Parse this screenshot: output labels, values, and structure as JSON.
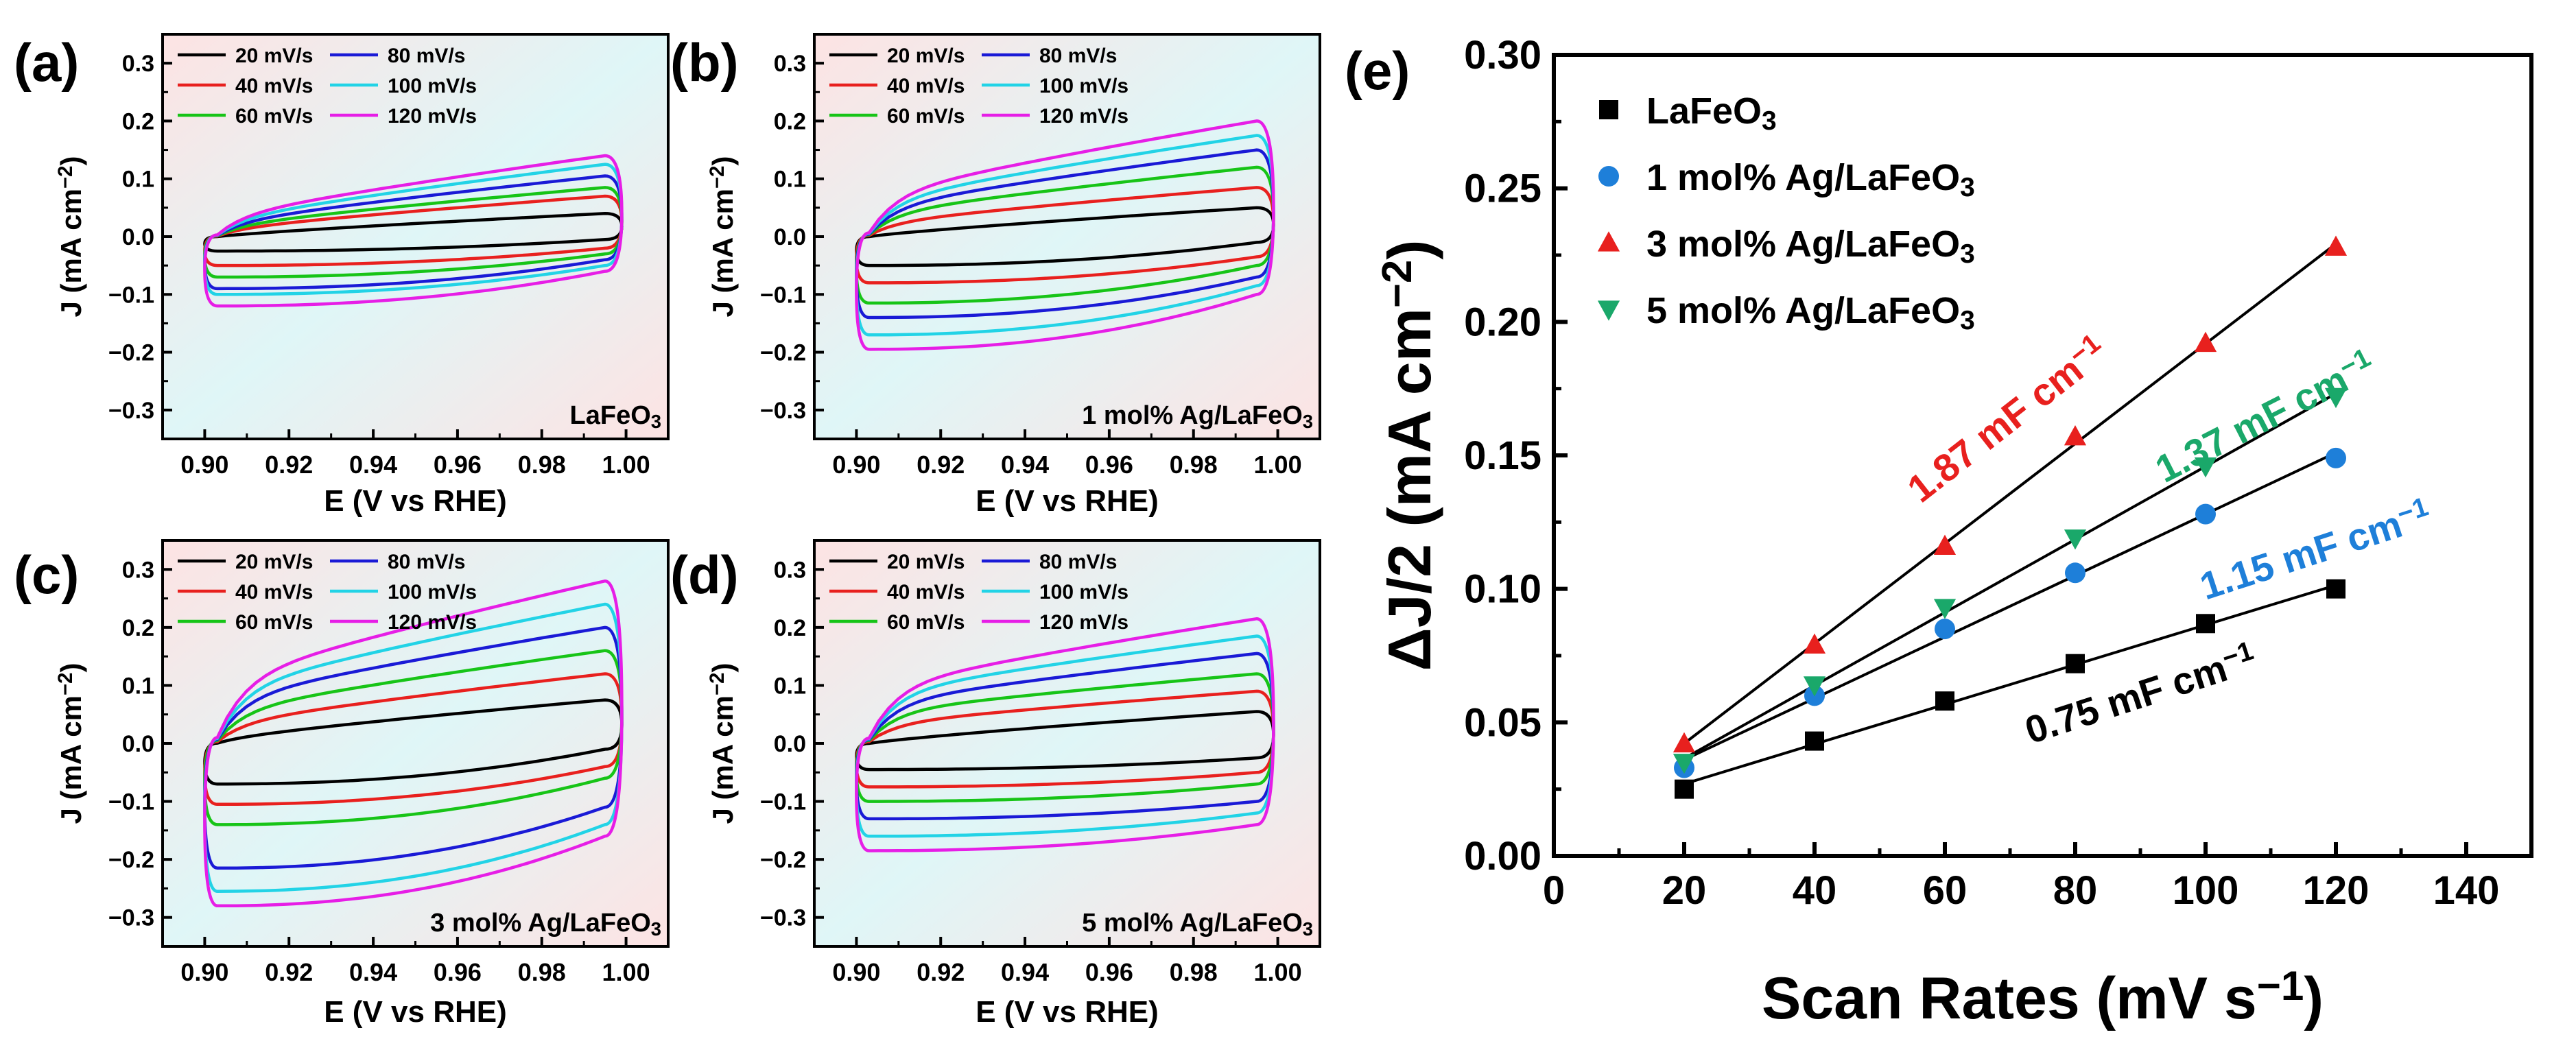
{
  "chart_data": [
    {
      "type": "line",
      "panel_label": "(a)",
      "sample_label": "LaFeO3",
      "xlabel": "E (V vs RHE)",
      "ylabel": "J (mA cm−2)",
      "xlim": [
        0.89,
        1.01
      ],
      "ylim": [
        -0.35,
        0.35
      ],
      "xticks": [
        "0.90",
        "0.92",
        "0.94",
        "0.96",
        "0.98",
        "1.00"
      ],
      "yticks": [
        "−0.3",
        "−0.2",
        "−0.1",
        "0.0",
        "0.1",
        "0.2",
        "0.3"
      ],
      "legend": [
        "20 mV/s",
        "40 mV/s",
        "60 mV/s",
        "80 mV/s",
        "100 mV/s",
        "120 mV/s"
      ],
      "series": [
        {
          "name": "20 mV/s",
          "color": "#000000",
          "upper": [
            0.0,
            0.04
          ],
          "lower": [
            -0.025,
            -0.005
          ]
        },
        {
          "name": "40 mV/s",
          "color": "#e8201e",
          "upper": [
            0.01,
            0.07
          ],
          "lower": [
            -0.05,
            -0.02
          ]
        },
        {
          "name": "60 mV/s",
          "color": "#17c417",
          "upper": [
            0.015,
            0.085
          ],
          "lower": [
            -0.07,
            -0.03
          ]
        },
        {
          "name": "80 mV/s",
          "color": "#1a1ad6",
          "upper": [
            0.02,
            0.105
          ],
          "lower": [
            -0.09,
            -0.04
          ]
        },
        {
          "name": "100 mV/s",
          "color": "#22d3e6",
          "upper": [
            0.025,
            0.125
          ],
          "lower": [
            -0.1,
            -0.05
          ]
        },
        {
          "name": "120 mV/s",
          "color": "#e61ee6",
          "upper": [
            0.03,
            0.14
          ],
          "lower": [
            -0.12,
            -0.06
          ]
        }
      ]
    },
    {
      "type": "line",
      "panel_label": "(b)",
      "sample_label": "1 mol% Ag/LaFeO3",
      "xlabel": "E (V vs RHE)",
      "ylabel": "J (mA cm−2)",
      "xlim": [
        0.89,
        1.01
      ],
      "ylim": [
        -0.35,
        0.35
      ],
      "xticks": [
        "0.90",
        "0.92",
        "0.94",
        "0.96",
        "0.98",
        "1.00"
      ],
      "yticks": [
        "−0.3",
        "−0.2",
        "−0.1",
        "0.0",
        "0.1",
        "0.2",
        "0.3"
      ],
      "legend": [
        "20 mV/s",
        "40 mV/s",
        "60 mV/s",
        "80 mV/s",
        "100 mV/s",
        "120 mV/s"
      ],
      "series": [
        {
          "name": "20 mV/s",
          "color": "#000000",
          "upper": [
            0.0,
            0.05
          ],
          "lower": [
            -0.05,
            -0.01
          ]
        },
        {
          "name": "40 mV/s",
          "color": "#e8201e",
          "upper": [
            0.02,
            0.085
          ],
          "lower": [
            -0.08,
            -0.035
          ]
        },
        {
          "name": "60 mV/s",
          "color": "#17c417",
          "upper": [
            0.035,
            0.12
          ],
          "lower": [
            -0.115,
            -0.05
          ]
        },
        {
          "name": "80 mV/s",
          "color": "#1a1ad6",
          "upper": [
            0.045,
            0.15
          ],
          "lower": [
            -0.14,
            -0.07
          ]
        },
        {
          "name": "100 mV/s",
          "color": "#22d3e6",
          "upper": [
            0.055,
            0.175
          ],
          "lower": [
            -0.17,
            -0.085
          ]
        },
        {
          "name": "120 mV/s",
          "color": "#e61ee6",
          "upper": [
            0.065,
            0.2
          ],
          "lower": [
            -0.195,
            -0.1
          ]
        }
      ]
    },
    {
      "type": "line",
      "panel_label": "(c)",
      "sample_label": "3 mol% Ag/LaFeO3",
      "xlabel": "E (V vs RHE)",
      "ylabel": "J (mA cm−2)",
      "xlim": [
        0.89,
        1.01
      ],
      "ylim": [
        -0.35,
        0.35
      ],
      "xticks": [
        "0.90",
        "0.92",
        "0.94",
        "0.96",
        "0.98",
        "1.00"
      ],
      "yticks": [
        "−0.3",
        "−0.2",
        "−0.1",
        "0.0",
        "0.1",
        "0.2",
        "0.3"
      ],
      "legend": [
        "20 mV/s",
        "40 mV/s",
        "60 mV/s",
        "80 mV/s",
        "100 mV/s",
        "120 mV/s"
      ],
      "series": [
        {
          "name": "20 mV/s",
          "color": "#000000",
          "upper": [
            0.005,
            0.075
          ],
          "lower": [
            -0.07,
            -0.01
          ]
        },
        {
          "name": "40 mV/s",
          "color": "#e8201e",
          "upper": [
            0.03,
            0.12
          ],
          "lower": [
            -0.105,
            -0.04
          ]
        },
        {
          "name": "60 mV/s",
          "color": "#17c417",
          "upper": [
            0.05,
            0.16
          ],
          "lower": [
            -0.14,
            -0.06
          ]
        },
        {
          "name": "80 mV/s",
          "color": "#1a1ad6",
          "upper": [
            0.07,
            0.2
          ],
          "lower": [
            -0.215,
            -0.11
          ]
        },
        {
          "name": "100 mV/s",
          "color": "#22d3e6",
          "upper": [
            0.085,
            0.24
          ],
          "lower": [
            -0.255,
            -0.14
          ]
        },
        {
          "name": "120 mV/s",
          "color": "#e61ee6",
          "upper": [
            0.1,
            0.28
          ],
          "lower": [
            -0.28,
            -0.16
          ]
        }
      ]
    },
    {
      "type": "line",
      "panel_label": "(d)",
      "sample_label": "5 mol% Ag/LaFeO3",
      "xlabel": "E (V vs RHE)",
      "ylabel": "J (mA cm−2)",
      "xlim": [
        0.89,
        1.01
      ],
      "ylim": [
        -0.35,
        0.35
      ],
      "xticks": [
        "0.90",
        "0.92",
        "0.94",
        "0.96",
        "0.98",
        "1.00"
      ],
      "yticks": [
        "−0.3",
        "−0.2",
        "−0.1",
        "0.0",
        "0.1",
        "0.2",
        "0.3"
      ],
      "legend": [
        "20 mV/s",
        "40 mV/s",
        "60 mV/s",
        "80 mV/s",
        "100 mV/s",
        "120 mV/s"
      ],
      "series": [
        {
          "name": "20 mV/s",
          "color": "#000000",
          "upper": [
            0.0,
            0.055
          ],
          "lower": [
            -0.045,
            -0.025
          ]
        },
        {
          "name": "40 mV/s",
          "color": "#e8201e",
          "upper": [
            0.03,
            0.09
          ],
          "lower": [
            -0.075,
            -0.05
          ]
        },
        {
          "name": "60 mV/s",
          "color": "#17c417",
          "upper": [
            0.05,
            0.12
          ],
          "lower": [
            -0.1,
            -0.07
          ]
        },
        {
          "name": "80 mV/s",
          "color": "#1a1ad6",
          "upper": [
            0.065,
            0.155
          ],
          "lower": [
            -0.13,
            -0.1
          ]
        },
        {
          "name": "100 mV/s",
          "color": "#22d3e6",
          "upper": [
            0.08,
            0.185
          ],
          "lower": [
            -0.16,
            -0.12
          ]
        },
        {
          "name": "120 mV/s",
          "color": "#e61ee6",
          "upper": [
            0.09,
            0.215
          ],
          "lower": [
            -0.185,
            -0.14
          ]
        }
      ]
    },
    {
      "type": "scatter",
      "panel_label": "(e)",
      "xlabel": "Scan Rates (mV s−1)",
      "ylabel": "ΔJ/2 (mA cm−2)",
      "xlim": [
        0,
        150
      ],
      "ylim": [
        0,
        0.3
      ],
      "xticks": [
        "0",
        "20",
        "40",
        "60",
        "80",
        "100",
        "120",
        "140"
      ],
      "yticks": [
        "0.00",
        "0.05",
        "0.10",
        "0.15",
        "0.20",
        "0.25",
        "0.30"
      ],
      "x": [
        20,
        40,
        60,
        80,
        100,
        120
      ],
      "series": [
        {
          "name": "LaFeO3",
          "color": "#000000",
          "marker": "square",
          "values": [
            0.025,
            0.043,
            0.058,
            0.072,
            0.087,
            0.1
          ],
          "fit": "0.75 mF cm−1",
          "label_color": "#000000"
        },
        {
          "name": "1 mol% Ag/LaFeO3",
          "color": "#1e7fd9",
          "marker": "circle",
          "values": [
            0.033,
            0.06,
            0.085,
            0.106,
            0.128,
            0.149
          ],
          "fit": "1.15 mF cm−1",
          "label_color": "#1e7fd9"
        },
        {
          "name": "3 mol% Ag/LaFeO3",
          "color": "#e8201e",
          "marker": "triangle-up",
          "values": [
            0.042,
            0.079,
            0.116,
            0.157,
            0.192,
            0.228
          ],
          "fit": "1.87 mF cm−1",
          "label_color": "#e8201e"
        },
        {
          "name": "5 mol% Ag/LaFeO3",
          "color": "#1aa86a",
          "marker": "triangle-down",
          "values": [
            0.035,
            0.064,
            0.093,
            0.119,
            0.146,
            0.172
          ],
          "fit": "1.37 mF cm−1",
          "label_color": "#1aa86a"
        }
      ]
    }
  ]
}
